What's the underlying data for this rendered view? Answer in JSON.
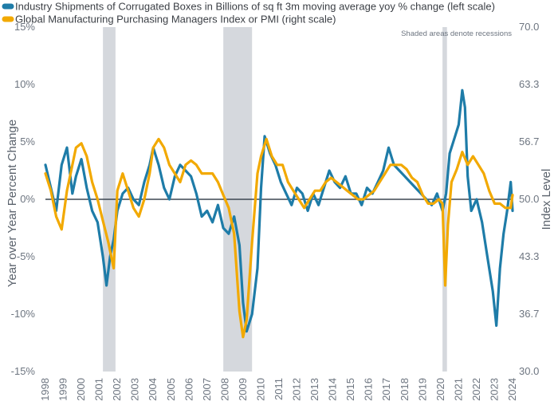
{
  "chart_data": {
    "type": "line",
    "legend_position": "top-left",
    "grid": false,
    "note": "Shaded areas denote recessions",
    "y_label_left": "Year over Year Percent Change",
    "y_label_right": "Index Level",
    "y_left_lim": [
      -15,
      15
    ],
    "y_right_lim": [
      30.0,
      70.0
    ],
    "y_left_ticks": [
      "15%",
      "10%",
      "5%",
      "0%",
      "-5%",
      "-10%",
      "-15%"
    ],
    "y_right_ticks": [
      "70.0",
      "63.3",
      "56.7",
      "50.0",
      "43.3",
      "36.7",
      "30.0"
    ],
    "x_ticks": [
      "1998",
      "1999",
      "2000",
      "2001",
      "2002",
      "2003",
      "2004",
      "2005",
      "2006",
      "2007",
      "2008",
      "2009",
      "2010",
      "2011",
      "2012",
      "2013",
      "2014",
      "2015",
      "2016",
      "2017",
      "2018",
      "2019",
      "2020",
      "2021",
      "2022",
      "2023",
      "2024"
    ],
    "recessions": [
      [
        2001.2,
        2001.9
      ],
      [
        2007.9,
        2009.5
      ],
      [
        2020.1,
        2020.35
      ]
    ],
    "series": [
      {
        "name": "Industry Shipments of Corrugated Boxes in Billions of sq ft 3m moving average yoy % change (left scale)",
        "axis": "left",
        "color": "#1e7ca8",
        "x": [
          1998.0,
          1998.3,
          1998.6,
          1998.9,
          1999.2,
          1999.5,
          1999.7,
          2000.0,
          2000.3,
          2000.6,
          2000.9,
          2001.2,
          2001.4,
          2001.6,
          2001.8,
          2002.0,
          2002.3,
          2002.6,
          2002.9,
          2003.2,
          2003.5,
          2003.8,
          2004.0,
          2004.3,
          2004.6,
          2004.9,
          2005.2,
          2005.5,
          2005.8,
          2006.1,
          2006.4,
          2006.7,
          2007.0,
          2007.3,
          2007.6,
          2007.9,
          2008.2,
          2008.5,
          2008.8,
          2009.0,
          2009.2,
          2009.5,
          2009.8,
          2010.0,
          2010.2,
          2010.5,
          2010.8,
          2011.1,
          2011.4,
          2011.7,
          2012.0,
          2012.3,
          2012.6,
          2012.9,
          2013.2,
          2013.5,
          2013.8,
          2014.1,
          2014.4,
          2014.7,
          2015.0,
          2015.3,
          2015.6,
          2015.9,
          2016.2,
          2016.5,
          2016.8,
          2017.1,
          2017.4,
          2017.7,
          2018.0,
          2018.3,
          2018.6,
          2018.9,
          2019.2,
          2019.5,
          2019.8,
          2020.1,
          2020.3,
          2020.5,
          2020.8,
          2021.0,
          2021.2,
          2021.35,
          2021.5,
          2021.7,
          2022.0,
          2022.3,
          2022.6,
          2022.9,
          2023.1,
          2023.3,
          2023.5,
          2023.7,
          2023.9,
          2024.0
        ],
        "values": [
          3,
          1,
          -1,
          3,
          4.5,
          0.5,
          2,
          3.5,
          1,
          -1,
          -2,
          -5,
          -7.5,
          -5,
          -3.5,
          -1,
          0.5,
          1,
          0,
          -0.5,
          1.5,
          3,
          4.5,
          3,
          1,
          0,
          2,
          3,
          2.5,
          2,
          0.5,
          -1.5,
          -1,
          -2,
          -0.5,
          -2.5,
          -3,
          -1.5,
          -4,
          -9,
          -11.5,
          -10,
          -6,
          1,
          5.5,
          4,
          3,
          1.5,
          0.5,
          -0.5,
          1,
          0.5,
          -1,
          0.5,
          -0.5,
          1,
          2.5,
          1.5,
          1,
          2,
          0.5,
          0.5,
          -0.5,
          1,
          0.5,
          1.5,
          2.5,
          4.5,
          3,
          2.5,
          2,
          1.5,
          1,
          0.5,
          0,
          -0.5,
          0.5,
          -1,
          0.5,
          4,
          5.5,
          6.5,
          9.5,
          8,
          2,
          -1,
          0,
          -2,
          -5,
          -8,
          -11,
          -6,
          -3,
          -1,
          1.5,
          -1
        ]
      },
      {
        "name": "Global Manufacturing Purchasing Managers Index or PMI (right scale)",
        "axis": "right",
        "color": "#f2a900",
        "x": [
          1998.0,
          1998.3,
          1998.6,
          1998.9,
          1999.2,
          1999.5,
          1999.7,
          2000.0,
          2000.3,
          2000.6,
          2000.9,
          2001.2,
          2001.5,
          2001.8,
          2002.0,
          2002.3,
          2002.6,
          2002.9,
          2003.2,
          2003.5,
          2003.8,
          2004.0,
          2004.3,
          2004.6,
          2004.9,
          2005.2,
          2005.5,
          2005.8,
          2006.1,
          2006.4,
          2006.7,
          2007.0,
          2007.3,
          2007.6,
          2007.9,
          2008.2,
          2008.5,
          2008.8,
          2009.0,
          2009.2,
          2009.5,
          2009.8,
          2010.0,
          2010.3,
          2010.6,
          2010.9,
          2011.2,
          2011.5,
          2011.8,
          2012.1,
          2012.4,
          2012.7,
          2013.0,
          2013.3,
          2013.6,
          2013.9,
          2014.2,
          2014.5,
          2014.8,
          2015.1,
          2015.4,
          2015.7,
          2016.0,
          2016.3,
          2016.6,
          2016.9,
          2017.2,
          2017.5,
          2017.8,
          2018.1,
          2018.4,
          2018.7,
          2019.0,
          2019.3,
          2019.6,
          2019.9,
          2020.1,
          2020.25,
          2020.4,
          2020.6,
          2020.9,
          2021.2,
          2021.5,
          2021.8,
          2022.1,
          2022.4,
          2022.7,
          2023.0,
          2023.3,
          2023.6,
          2023.9,
          2024.0
        ],
        "values": [
          53,
          51,
          48,
          46.5,
          51,
          54,
          56,
          56.5,
          55,
          52,
          50,
          47.5,
          45,
          42,
          51,
          53,
          51,
          49,
          48,
          50,
          53,
          56,
          57,
          56,
          54,
          53,
          52,
          54,
          54.5,
          54,
          53,
          53,
          53,
          52,
          50.5,
          49,
          46,
          37,
          34,
          36,
          45,
          53,
          55,
          57,
          55,
          54,
          54,
          52,
          51,
          50,
          49,
          50,
          51,
          51,
          52,
          52.5,
          52,
          51.5,
          51,
          50.5,
          50,
          50,
          50.5,
          51,
          52,
          53,
          54,
          54,
          54,
          53.5,
          52.5,
          52,
          50.5,
          49.5,
          49.5,
          50,
          49.5,
          40,
          47,
          52,
          53.5,
          55.5,
          54,
          55,
          54,
          53,
          51,
          49.5,
          49.5,
          49,
          49,
          50.5
        ]
      }
    ]
  }
}
